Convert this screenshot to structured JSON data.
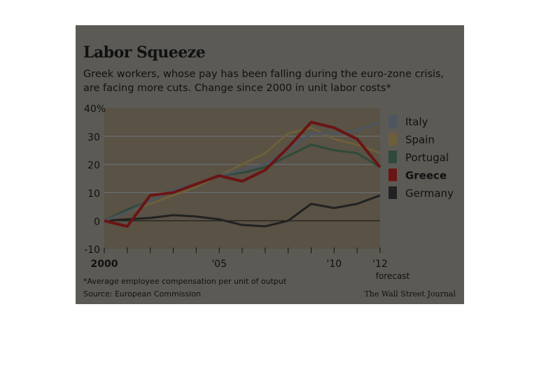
{
  "chart_data": {
    "type": "line",
    "title": "Labor Squeeze",
    "subtitle": "Greek workers, whose pay has been falling during the euro-zone crisis, are facing more cuts. Change since 2000 in unit labor costs*",
    "x": [
      2000,
      2001,
      2002,
      2003,
      2004,
      2005,
      2006,
      2007,
      2008,
      2009,
      2010,
      2011,
      2012
    ],
    "x_tick_labels": [
      "2000",
      "'05",
      "'10",
      "'12"
    ],
    "x_tick_note": "forecast",
    "y_tick_labels": [
      "40%",
      "30",
      "20",
      "10",
      "0",
      "-10"
    ],
    "ylim": [
      -10,
      40
    ],
    "series": [
      {
        "name": "Italy",
        "color": "#4d5560",
        "values": [
          0,
          3,
          7,
          11,
          13,
          16,
          18,
          20,
          25,
          31,
          31,
          32,
          35
        ]
      },
      {
        "name": "Spain",
        "color": "#6e5f3a",
        "values": [
          0,
          3,
          6,
          9,
          12,
          16,
          20,
          24,
          31,
          33,
          29,
          27,
          24
        ]
      },
      {
        "name": "Portugal",
        "color": "#2f4a3a",
        "values": [
          0,
          4,
          7,
          11,
          13,
          16,
          17,
          19,
          23,
          27,
          25,
          24,
          19
        ]
      },
      {
        "name": "Greece",
        "color": "#6b1414",
        "values": [
          0,
          -2,
          9,
          10,
          13,
          16,
          14,
          18,
          26,
          35,
          33,
          29,
          19
        ]
      },
      {
        "name": "Germany",
        "color": "#222222",
        "values": [
          0,
          0.5,
          1,
          2,
          1.5,
          0.5,
          -1.5,
          -2,
          0,
          6,
          4.5,
          6,
          9
        ]
      }
    ],
    "legend_position": "right",
    "footnote": "*Average employee compensation per unit of output",
    "source": "Source: European Commission",
    "credit": "The Wall Street Journal"
  }
}
